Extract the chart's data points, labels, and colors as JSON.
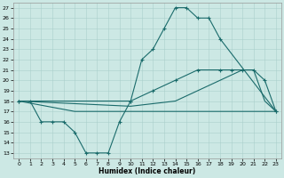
{
  "xlabel": "Humidex (Indice chaleur)",
  "xlim": [
    -0.5,
    23.5
  ],
  "ylim": [
    12.5,
    27.5
  ],
  "yticks": [
    13,
    14,
    15,
    16,
    17,
    18,
    19,
    20,
    21,
    22,
    23,
    24,
    25,
    26,
    27
  ],
  "xticks": [
    0,
    1,
    2,
    3,
    4,
    5,
    6,
    7,
    8,
    9,
    10,
    11,
    12,
    13,
    14,
    15,
    16,
    17,
    18,
    19,
    20,
    21,
    22,
    23
  ],
  "bg_color": "#cce8e4",
  "line_color": "#1a6b6b",
  "grid_color": "#aacfcb",
  "line1_x": [
    0,
    1,
    2,
    3,
    4,
    5,
    6,
    7,
    8,
    9,
    10,
    11,
    12,
    13,
    14,
    15,
    16,
    17,
    18,
    23
  ],
  "line1_y": [
    18,
    18,
    16,
    16,
    16,
    15,
    13,
    13,
    13,
    16,
    18,
    22,
    23,
    25,
    27,
    27,
    26,
    26,
    24,
    17
  ],
  "line2_x": [
    0,
    10,
    12,
    14,
    16,
    18,
    19,
    20,
    21,
    22,
    23
  ],
  "line2_y": [
    18,
    18,
    19,
    20,
    21,
    21,
    21,
    21,
    21,
    20,
    17
  ],
  "line3_x": [
    0,
    10,
    14,
    18,
    20,
    21,
    22,
    23
  ],
  "line3_y": [
    18,
    17.5,
    18,
    20,
    21,
    21,
    18,
    17
  ],
  "line4_x": [
    0,
    5,
    10,
    15,
    20,
    23
  ],
  "line4_y": [
    18,
    17,
    17,
    17,
    17,
    17
  ]
}
